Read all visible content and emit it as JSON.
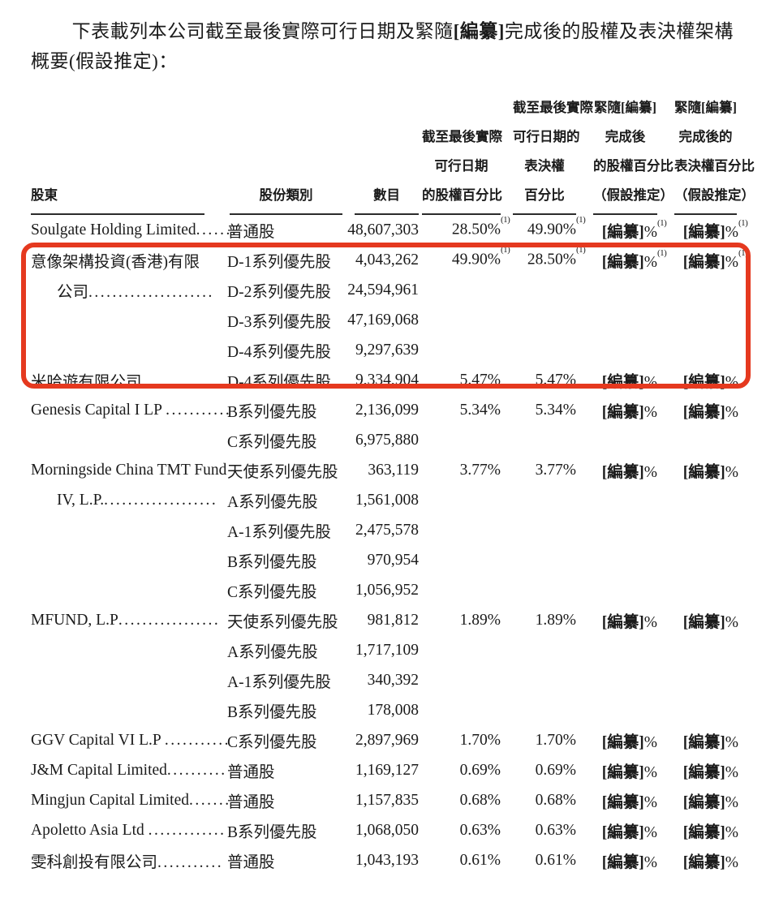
{
  "intro": {
    "pre": "下表載列本公司截至最後實際可行日期及緊隨",
    "redacted": "[編纂]",
    "post": "完成後的股權及表決權架構概要(假設推定)："
  },
  "annotation": {
    "shape": "rounded-rectangle",
    "color": "#e5391f",
    "covers": "意像架構投資(香港)有限公司及米哈遊有限公司各行"
  },
  "table": {
    "headers": [
      {
        "lines": [
          "股東"
        ]
      },
      {
        "lines": [
          "股份類別"
        ]
      },
      {
        "lines": [
          "數目"
        ]
      },
      {
        "lines": [
          "截至最後實際",
          "可行日期",
          "的股權百分比"
        ]
      },
      {
        "lines": [
          "截至最後實際",
          "可行日期的",
          "表決權",
          "百分比"
        ]
      },
      {
        "lines": [
          "緊隨[編纂]",
          "完成後",
          "的股權百分比",
          "（假設推定）"
        ]
      },
      {
        "lines": [
          "緊隨[編纂]",
          "完成後的",
          "表決權百分比",
          "（假設推定）"
        ]
      }
    ],
    "rows": [
      {
        "name": "Soulgate Holding Limited",
        "leader": ".......",
        "cls": "普通股",
        "num": "48,607,303",
        "p1": {
          "v": "28.50%",
          "sup": "(1)"
        },
        "p2": {
          "v": "49.90%",
          "sup": "(1)"
        },
        "p3": {
          "b": "[編纂]",
          "v": "%",
          "sup": "(1)"
        },
        "p4": {
          "b": "[編纂]",
          "v": "%",
          "sup": "(1)"
        }
      },
      {
        "name": "意像架構投資(香港)有限",
        "cls": "D-1系列優先股",
        "num": "4,043,262",
        "p1": {
          "v": "49.90%",
          "sup": "(1)"
        },
        "p2": {
          "v": "28.50%",
          "sup": "(1)"
        },
        "p3": {
          "b": "[編纂]",
          "v": "%",
          "sup": "(1)"
        },
        "p4": {
          "b": "[編纂]",
          "v": "%",
          "sup": "(1)"
        }
      },
      {
        "name": "公司",
        "leader": ".....................",
        "indent": true,
        "cls": "D-2系列優先股",
        "num": "24,594,961"
      },
      {
        "cls": "D-3系列優先股",
        "num": "47,169,068"
      },
      {
        "cls": "D-4系列優先股",
        "num": "9,297,639"
      },
      {
        "name": "米哈遊有限公司",
        "leader": ".............",
        "cls": "D-4系列優先股",
        "num": "9,334,904",
        "p1": {
          "v": "5.47%"
        },
        "p2": {
          "v": "5.47%"
        },
        "p3": {
          "b": "[編纂]",
          "v": "%"
        },
        "p4": {
          "b": "[編纂]",
          "v": "%"
        }
      },
      {
        "name": "Genesis Capital I LP ",
        "leader": "...........",
        "cls": "B系列優先股",
        "num": "2,136,099",
        "p1": {
          "v": "5.34%"
        },
        "p2": {
          "v": "5.34%"
        },
        "p3": {
          "b": "[編纂]",
          "v": "%"
        },
        "p4": {
          "b": "[編纂]",
          "v": "%"
        }
      },
      {
        "cls": "C系列優先股",
        "num": "6,975,880"
      },
      {
        "name": "Morningside China TMT Fund",
        "cls": "天使系列優先股",
        "num": "363,119",
        "p1": {
          "v": "3.77%"
        },
        "p2": {
          "v": "3.77%"
        },
        "p3": {
          "b": "[編纂]",
          "v": "%"
        },
        "p4": {
          "b": "[編纂]",
          "v": "%"
        }
      },
      {
        "name": "IV, L.P.",
        "leader": "...................",
        "indent": true,
        "cls": "A系列優先股",
        "num": "1,561,008"
      },
      {
        "cls": "A-1系列優先股",
        "num": "2,475,578"
      },
      {
        "cls": "B系列優先股",
        "num": "970,954"
      },
      {
        "cls": "C系列優先股",
        "num": "1,056,952"
      },
      {
        "name": "MFUND, L.P",
        "leader": ".................",
        "cls": "天使系列優先股",
        "num": "981,812",
        "p1": {
          "v": "1.89%"
        },
        "p2": {
          "v": "1.89%"
        },
        "p3": {
          "b": "[編纂]",
          "v": "%"
        },
        "p4": {
          "b": "[編纂]",
          "v": "%"
        }
      },
      {
        "cls": "A系列優先股",
        "num": "1,717,109"
      },
      {
        "cls": "A-1系列優先股",
        "num": "340,392"
      },
      {
        "cls": "B系列優先股",
        "num": "178,008"
      },
      {
        "name": "GGV Capital VI L.P ",
        "leader": "...........",
        "cls": "C系列優先股",
        "num": "2,897,969",
        "p1": {
          "v": "1.70%"
        },
        "p2": {
          "v": "1.70%"
        },
        "p3": {
          "b": "[編纂]",
          "v": "%"
        },
        "p4": {
          "b": "[編纂]",
          "v": "%"
        }
      },
      {
        "name": "J&M Capital Limited",
        "leader": "..........",
        "cls": "普通股",
        "num": "1,169,127",
        "p1": {
          "v": "0.69%"
        },
        "p2": {
          "v": "0.69%"
        },
        "p3": {
          "b": "[編纂]",
          "v": "%"
        },
        "p4": {
          "b": "[編纂]",
          "v": "%"
        }
      },
      {
        "name": "Mingjun Capital Limited",
        "leader": ".......",
        "cls": "普通股",
        "num": "1,157,835",
        "p1": {
          "v": "0.68%"
        },
        "p2": {
          "v": "0.68%"
        },
        "p3": {
          "b": "[編纂]",
          "v": "%"
        },
        "p4": {
          "b": "[編纂]",
          "v": "%"
        }
      },
      {
        "name": "Apoletto Asia Ltd ",
        "leader": ".............",
        "cls": "B系列優先股",
        "num": "1,068,050",
        "p1": {
          "v": "0.63%"
        },
        "p2": {
          "v": "0.63%"
        },
        "p3": {
          "b": "[編纂]",
          "v": "%"
        },
        "p4": {
          "b": "[編纂]",
          "v": "%"
        }
      },
      {
        "name": "雯科創投有限公司",
        "leader": "...........",
        "cls": "普通股",
        "num": "1,043,193",
        "p1": {
          "v": "0.61%"
        },
        "p2": {
          "v": "0.61%"
        },
        "p3": {
          "b": "[編纂]",
          "v": "%"
        },
        "p4": {
          "b": "[編纂]",
          "v": "%"
        }
      }
    ]
  }
}
